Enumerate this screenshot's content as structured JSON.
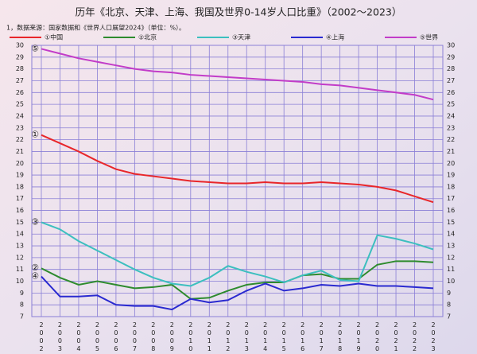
{
  "chart_data": {
    "type": "line",
    "title": "历年《北京、天津、上海、我国及世界0-14岁人口比重》（2002～2023）",
    "subtitle": "1，数据来源：国家数据和《世界人口展望2024》（单位：%）。",
    "categories": [
      "2002",
      "2003",
      "2004",
      "2005",
      "2006",
      "2007",
      "2008",
      "2009",
      "2010",
      "2011",
      "2012",
      "2013",
      "2014",
      "2015",
      "2016",
      "2017",
      "2018",
      "2019",
      "2020",
      "2021",
      "2022",
      "2023"
    ],
    "series": [
      {
        "name": "①中国",
        "marker": "①",
        "color": "#e8262a",
        "values": [
          22.4,
          21.7,
          21.0,
          20.2,
          19.5,
          19.1,
          18.9,
          18.7,
          18.5,
          18.4,
          18.3,
          18.3,
          18.4,
          18.3,
          18.3,
          18.4,
          18.3,
          18.2,
          18.0,
          17.7,
          17.2,
          16.7
        ]
      },
      {
        "name": "②北京",
        "marker": "②",
        "color": "#2e8b2e",
        "values": [
          11.1,
          10.3,
          9.7,
          10.0,
          9.7,
          9.4,
          9.5,
          9.7,
          8.5,
          8.6,
          9.2,
          9.7,
          9.9,
          9.9,
          10.5,
          10.6,
          10.2,
          10.2,
          11.4,
          11.7,
          11.7,
          11.6
        ]
      },
      {
        "name": "③天津",
        "marker": "③",
        "color": "#3cbfbf",
        "values": [
          15.0,
          14.4,
          13.4,
          12.6,
          11.8,
          11.0,
          10.3,
          9.8,
          9.6,
          10.3,
          11.3,
          10.8,
          10.4,
          9.9,
          10.5,
          10.9,
          10.1,
          10.0,
          13.9,
          13.6,
          13.2,
          12.7
        ]
      },
      {
        "name": "④上海",
        "marker": "④",
        "color": "#2a2ad0",
        "values": [
          10.4,
          8.7,
          8.7,
          8.8,
          8.0,
          7.9,
          7.9,
          7.6,
          8.5,
          8.2,
          8.4,
          9.2,
          9.8,
          9.2,
          9.4,
          9.7,
          9.6,
          9.8,
          9.6,
          9.6,
          9.5,
          9.4
        ]
      },
      {
        "name": "⑤世界",
        "marker": "⑤",
        "color": "#c23cc8",
        "values": [
          29.7,
          29.3,
          28.9,
          28.6,
          28.3,
          28.0,
          27.8,
          27.7,
          27.5,
          27.4,
          27.3,
          27.2,
          27.1,
          27.0,
          26.9,
          26.7,
          26.6,
          26.4,
          26.2,
          26.0,
          25.8,
          25.4
        ]
      }
    ],
    "ylim": [
      7,
      30
    ],
    "yticks": [
      7,
      8,
      9,
      10,
      11,
      12,
      13,
      14,
      15,
      16,
      17,
      18,
      19,
      20,
      21,
      22,
      23,
      24,
      25,
      26,
      27,
      28,
      29,
      30
    ],
    "grid": true
  }
}
